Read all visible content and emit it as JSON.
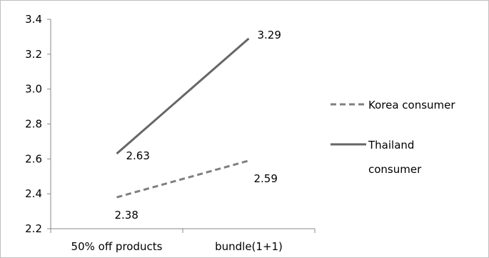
{
  "chart_data": {
    "type": "line",
    "title": "",
    "xlabel": "",
    "ylabel": "",
    "categories": [
      "50% off products",
      "bundle(1+1)"
    ],
    "ylim": [
      2.2,
      3.4
    ],
    "yticks": [
      "2.2",
      "2.4",
      "2.6",
      "2.8",
      "3.0",
      "3.2",
      "3.4"
    ],
    "grid": false,
    "legend_position": "right",
    "series": [
      {
        "name": "Korea consumer",
        "values": [
          2.38,
          2.59
        ],
        "labels": [
          "2.38",
          "2.59"
        ],
        "color": "#808080",
        "dash": "dashed"
      },
      {
        "name": "Thailand consumer",
        "values": [
          2.63,
          3.29
        ],
        "labels": [
          "2.63",
          "3.29"
        ],
        "color": "#666666",
        "dash": "solid"
      }
    ],
    "legend": {
      "korea_label": "Korea consumer",
      "thailand_label_line1": "Thailand",
      "thailand_label_line2": "consumer"
    }
  }
}
